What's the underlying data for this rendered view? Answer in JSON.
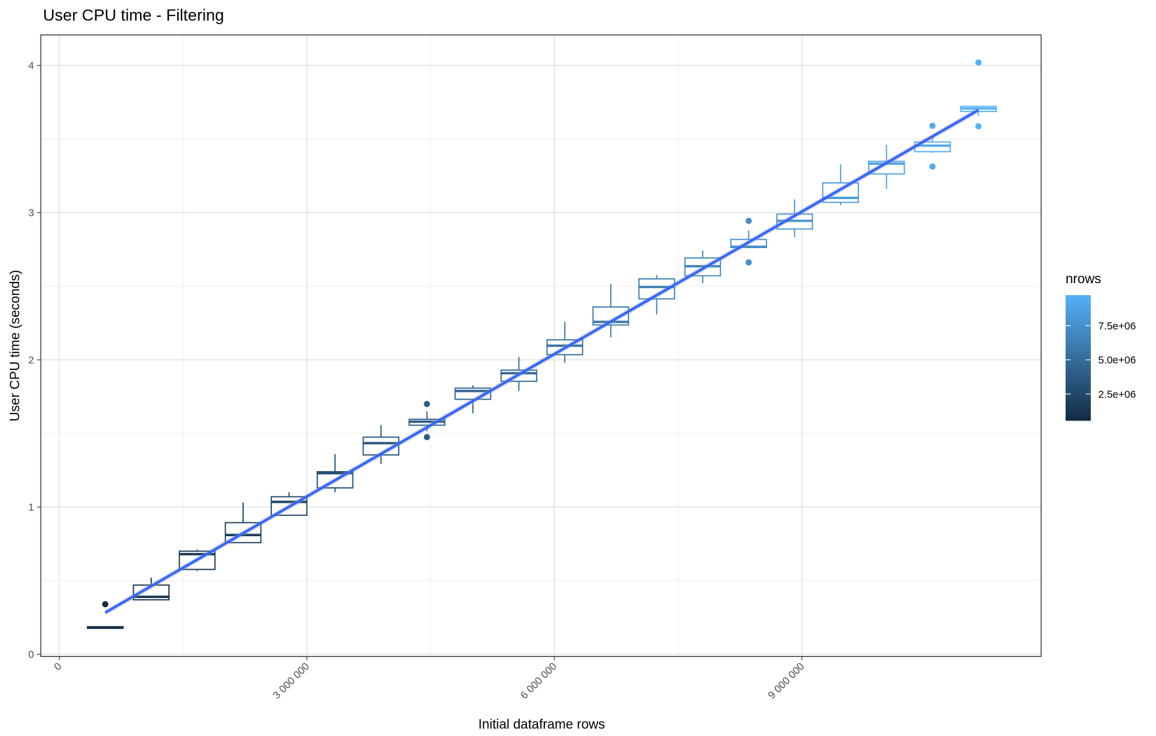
{
  "chart_data": {
    "type": "boxplot",
    "title": "User CPU time - Filtering",
    "x_label": "Initial dataframe rows",
    "y_label": "User CPU time (seconds)",
    "xlim": [
      -224600,
      11900000
    ],
    "ylim": [
      -0.015,
      4.207
    ],
    "xticks": [
      0,
      {
        "value": 3000000,
        "label": "3 000 000"
      },
      {
        "value": 6000000,
        "label": "6 000 000"
      },
      {
        "value": 9000000,
        "label": "9 000 000"
      }
    ],
    "yticks": [
      0,
      1,
      2,
      3,
      4
    ],
    "grid": true,
    "boxes": [
      {
        "x": 557000,
        "whisker_low": 0.177,
        "q1": 0.177,
        "median": 0.18,
        "q3": 0.187,
        "whisker_high": 0.187,
        "outliers": [
          0.34
        ],
        "color": "#132B43"
      },
      {
        "x": 1114000,
        "whisker_low": 0.37,
        "q1": 0.37,
        "median": 0.39,
        "q3": 0.47,
        "whisker_high": 0.52,
        "outliers": [],
        "color": "#17324C"
      },
      {
        "x": 1671000,
        "whisker_low": 0.566,
        "q1": 0.576,
        "median": 0.68,
        "q3": 0.7,
        "whisker_high": 0.71,
        "outliers": [],
        "color": "#1A3956"
      },
      {
        "x": 2228000,
        "whisker_low": 0.758,
        "q1": 0.758,
        "median": 0.81,
        "q3": 0.894,
        "whisker_high": 1.03,
        "outliers": [],
        "color": "#1E405F"
      },
      {
        "x": 2785000,
        "whisker_low": 0.944,
        "q1": 0.944,
        "median": 1.035,
        "q3": 1.07,
        "whisker_high": 1.1,
        "outliers": [],
        "color": "#214769"
      },
      {
        "x": 3342000,
        "whisker_low": 1.1,
        "q1": 1.13,
        "median": 1.23,
        "q3": 1.24,
        "whisker_high": 1.36,
        "outliers": [],
        "color": "#254E72"
      },
      {
        "x": 3899000,
        "whisker_low": 1.293,
        "q1": 1.354,
        "median": 1.434,
        "q3": 1.475,
        "whisker_high": 1.556,
        "outliers": [],
        "color": "#28557C"
      },
      {
        "x": 4456000,
        "whisker_low": 1.515,
        "q1": 1.556,
        "median": 1.58,
        "q3": 1.596,
        "whisker_high": 1.65,
        "outliers": [
          1.7,
          1.475
        ],
        "color": "#2C5C85"
      },
      {
        "x": 5013000,
        "whisker_low": 1.636,
        "q1": 1.732,
        "median": 1.788,
        "q3": 1.808,
        "whisker_high": 1.828,
        "outliers": [],
        "color": "#2F638F"
      },
      {
        "x": 5570000,
        "whisker_low": 1.788,
        "q1": 1.854,
        "median": 1.909,
        "q3": 1.93,
        "whisker_high": 2.02,
        "outliers": [],
        "color": "#336A98"
      },
      {
        "x": 6127000,
        "whisker_low": 1.98,
        "q1": 2.035,
        "median": 2.096,
        "q3": 2.136,
        "whisker_high": 2.258,
        "outliers": [],
        "color": "#3672A2"
      },
      {
        "x": 6684000,
        "whisker_low": 2.152,
        "q1": 2.237,
        "median": 2.258,
        "q3": 2.359,
        "whisker_high": 2.515,
        "outliers": [],
        "color": "#3A79AB"
      },
      {
        "x": 7241000,
        "whisker_low": 2.308,
        "q1": 2.414,
        "median": 2.495,
        "q3": 2.55,
        "whisker_high": 2.576,
        "outliers": [],
        "color": "#3D80B5"
      },
      {
        "x": 7798000,
        "whisker_low": 2.52,
        "q1": 2.571,
        "median": 2.636,
        "q3": 2.692,
        "whisker_high": 2.742,
        "outliers": [],
        "color": "#4187BE"
      },
      {
        "x": 8355000,
        "whisker_low": 2.763,
        "q1": 2.763,
        "median": 2.768,
        "q3": 2.818,
        "whisker_high": 2.879,
        "outliers": [
          2.944,
          2.662
        ],
        "color": "#448EC8"
      },
      {
        "x": 8912000,
        "whisker_low": 2.833,
        "q1": 2.889,
        "median": 2.944,
        "q3": 2.99,
        "whisker_high": 3.09,
        "outliers": [],
        "color": "#4895D1"
      },
      {
        "x": 9469000,
        "whisker_low": 3.05,
        "q1": 3.07,
        "median": 3.1,
        "q3": 3.202,
        "whisker_high": 3.328,
        "outliers": [],
        "color": "#4B9CDB"
      },
      {
        "x": 10026000,
        "whisker_low": 3.16,
        "q1": 3.263,
        "median": 3.333,
        "q3": 3.348,
        "whisker_high": 3.46,
        "outliers": [],
        "color": "#4FA3E4"
      },
      {
        "x": 10583000,
        "whisker_low": 3.404,
        "q1": 3.414,
        "median": 3.455,
        "q3": 3.48,
        "whisker_high": 3.51,
        "outliers": [
          3.59,
          3.313
        ],
        "color": "#52AAEE"
      },
      {
        "x": 11140000,
        "whisker_low": 3.657,
        "q1": 3.687,
        "median": 3.707,
        "q3": 3.722,
        "whisker_high": 3.722,
        "outliers": [
          4.02,
          3.586
        ],
        "color": "#56B1F7"
      }
    ],
    "fit": {
      "x": [
        557000,
        11140000
      ],
      "y": [
        0.283,
        3.697
      ],
      "color": "#3366FF"
    },
    "legend": {
      "title": "nrows",
      "low_color": "#132B43",
      "high_color": "#56B1F7",
      "limits": [
        540000,
        9730000
      ],
      "ticks": [
        {
          "value": 2500000,
          "label": "2.5e+06"
        },
        {
          "value": 5000000,
          "label": "5.0e+06"
        },
        {
          "value": 7500000,
          "label": "7.5e+06"
        }
      ]
    }
  }
}
